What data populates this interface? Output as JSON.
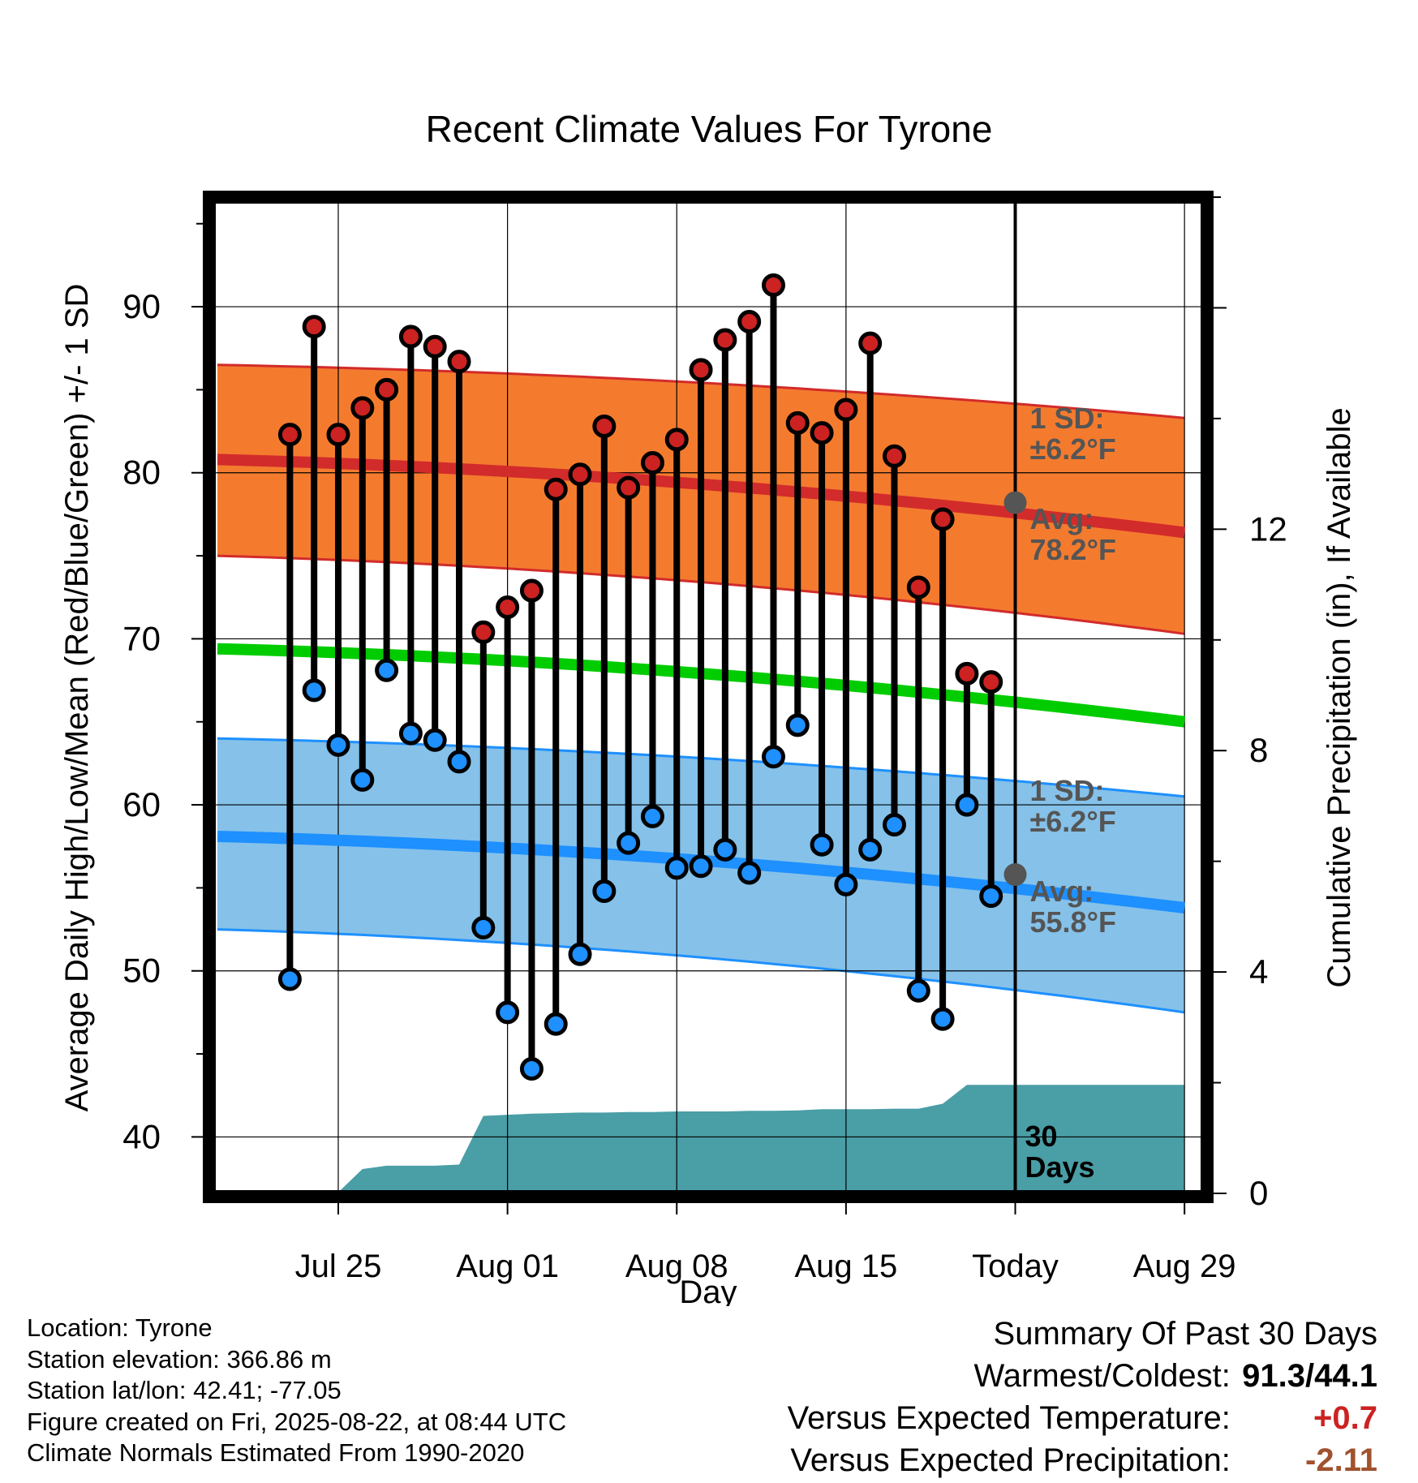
{
  "chart_data": {
    "type": "range-dot",
    "title": "Recent Climate Values For Tyrone",
    "xlabel": "Day",
    "ylabel": "Average Daily High/Low/Mean (Red/Blue/Green) +/- 1 SD",
    "y2label": "Cumulative Precipitation (in), If Available",
    "xlim": [
      -5.2,
      35.8
    ],
    "ylim": [
      36.6,
      96.6
    ],
    "y2lim": [
      0,
      18
    ],
    "x_ticks": [
      {
        "x": 0,
        "label": "Jul 25"
      },
      {
        "x": 7,
        "label": "Aug 01"
      },
      {
        "x": 14,
        "label": "Aug 08"
      },
      {
        "x": 21,
        "label": "Aug 15"
      },
      {
        "x": 28,
        "label": "Today"
      },
      {
        "x": 35,
        "label": "Aug 29"
      }
    ],
    "y_ticks": [
      40,
      50,
      60,
      70,
      80,
      90
    ],
    "y2_ticks": [
      0,
      4,
      8,
      12
    ],
    "today_x": 28,
    "grid": true,
    "days_x": [
      -2,
      -1,
      0,
      1,
      2,
      3,
      4,
      5,
      6,
      7,
      8,
      9,
      10,
      11,
      12,
      13,
      14,
      15,
      16,
      17,
      18,
      19,
      20,
      21,
      22,
      23,
      24,
      25,
      26,
      27
    ],
    "daily_high": [
      82.3,
      88.8,
      82.3,
      83.9,
      85.0,
      88.2,
      87.6,
      86.7,
      70.4,
      71.9,
      72.9,
      79.0,
      79.9,
      82.8,
      79.1,
      80.6,
      82.0,
      86.2,
      88.0,
      89.1,
      91.3,
      83.0,
      82.4,
      83.8,
      87.8,
      81.0,
      73.1,
      77.2,
      67.9,
      67.4
    ],
    "daily_low": [
      49.5,
      66.9,
      63.6,
      61.5,
      68.1,
      64.3,
      63.9,
      62.6,
      52.6,
      47.5,
      44.1,
      46.8,
      51.0,
      54.8,
      57.7,
      59.3,
      56.2,
      56.3,
      57.3,
      55.9,
      62.9,
      64.8,
      57.6,
      55.2,
      57.3,
      58.8,
      48.8,
      47.1,
      60.0,
      54.5
    ],
    "normal_x": [
      -5,
      35
    ],
    "normal_high": [
      80.8,
      76.4
    ],
    "normal_low": [
      58.1,
      53.8
    ],
    "normal_mean": [
      69.4,
      65.0
    ],
    "high_band_upper": [
      86.5,
      83.3
    ],
    "high_band_lower": [
      75.0,
      70.3
    ],
    "low_band_upper": [
      64.0,
      60.5
    ],
    "low_band_lower": [
      52.5,
      47.5
    ],
    "precip": {
      "x": [
        -5,
        -1,
        0,
        1,
        2,
        3,
        4,
        5,
        6,
        7,
        8,
        9,
        10,
        11,
        12,
        13,
        14,
        15,
        16,
        17,
        18,
        19,
        20,
        21,
        22,
        23,
        24,
        25,
        26,
        27,
        28,
        35
      ],
      "y": [
        0,
        0,
        0.02,
        0.44,
        0.5,
        0.5,
        0.5,
        0.52,
        1.4,
        1.42,
        1.44,
        1.45,
        1.46,
        1.46,
        1.47,
        1.47,
        1.48,
        1.48,
        1.48,
        1.49,
        1.49,
        1.5,
        1.52,
        1.52,
        1.52,
        1.53,
        1.53,
        1.62,
        1.96,
        1.96,
        1.96,
        1.96
      ]
    },
    "annotations": {
      "high_sd": [
        "1 SD:",
        "±6.2°F"
      ],
      "high_avg": [
        "Avg:",
        "78.2°F"
      ],
      "low_sd": [
        "1 SD:",
        "±6.2°F"
      ],
      "low_avg": [
        "Avg:",
        "55.8°F"
      ],
      "precip_days": [
        "30",
        "Days"
      ]
    },
    "today_normal_high": 78.2,
    "today_normal_low": 55.8
  },
  "colors": {
    "high_band": "#f47b2e",
    "high_band_edge": "#d22b2b",
    "high_line": "#d22b2b",
    "low_band": "#85c1e9",
    "low_band_edge": "#1e90ff",
    "low_line": "#1e90ff",
    "mean_line": "#00cc00",
    "precip_fill": "#4a9ea6",
    "high_dot": "#cc2222",
    "low_dot": "#1e90ff",
    "annotation_text": "#555555",
    "today_marker": "#555555",
    "positive": "#cc2222",
    "precip_deficit": "#a0522d"
  },
  "footer": {
    "location": "Location: Tyrone",
    "elevation": "Station elevation: 366.86 m",
    "latlon": "Station lat/lon: 42.41; -77.05",
    "created": "Figure created on Fri, 2025-08-22, at 08:44 UTC",
    "normals": "Climate Normals Estimated From 1990-2020"
  },
  "summary": {
    "title": "Summary Of Past 30 Days",
    "warm_cold_label": "Warmest/Coldest:",
    "warm_cold_value": "91.3/44.1",
    "temp_label": "Versus Expected Temperature:",
    "temp_value": "+0.7",
    "precip_label": "Versus Expected Precipitation:",
    "precip_value": "-2.11"
  }
}
